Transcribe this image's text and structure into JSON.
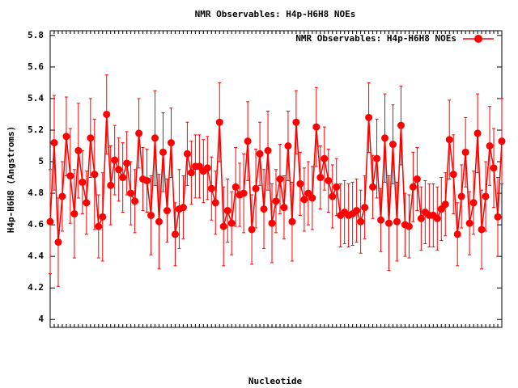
{
  "chart_data": {
    "type": "line-errorbar",
    "title": "NMR Observables: H4p-H6H8 NOEs",
    "x_label": "Nucleotide",
    "y_label": "H4p-H6H8 (Angstroms)",
    "legend_position": "top-right",
    "categories": [
      null,
      null,
      null,
      null,
      null,
      null,
      null,
      null,
      null,
      null,
      null,
      null,
      null,
      null,
      null,
      null,
      null,
      null,
      null,
      null,
      null,
      null,
      null,
      null,
      null,
      null,
      null,
      null,
      null,
      null,
      null,
      null,
      null,
      null,
      null,
      null,
      null,
      null,
      null,
      null,
      null,
      null,
      null,
      null,
      null,
      null,
      null,
      null,
      null,
      null,
      null,
      null,
      null,
      null,
      null,
      null,
      null,
      null,
      null,
      null,
      null,
      null,
      null,
      null,
      null,
      null,
      null,
      null,
      null,
      null,
      null,
      null,
      null,
      null,
      null,
      null,
      null,
      null,
      null,
      null,
      null,
      null,
      null,
      null,
      null,
      null,
      null,
      null,
      null,
      null,
      null,
      null,
      null,
      null,
      null,
      null,
      null,
      null,
      null,
      null,
      null,
      null,
      null,
      null,
      null,
      null,
      null,
      null,
      null,
      null,
      null,
      null,
      null
    ],
    "series": [
      {
        "name": "NMR Observables: H4p-H6H8 NOEs",
        "color": "#ff0000",
        "values": [
          4.62,
          5.12,
          4.49,
          4.78,
          5.16,
          4.91,
          4.67,
          5.07,
          4.87,
          4.74,
          5.15,
          4.92,
          4.59,
          4.65,
          5.3,
          4.85,
          5.01,
          4.95,
          4.9,
          4.99,
          4.8,
          4.75,
          5.18,
          4.89,
          4.88,
          4.66,
          5.15,
          4.62,
          5.06,
          4.69,
          5.12,
          4.54,
          4.7,
          4.71,
          5.05,
          4.93,
          4.97,
          4.97,
          4.94,
          4.96,
          4.83,
          4.74,
          5.25,
          4.59,
          4.69,
          4.61,
          4.84,
          4.79,
          4.8,
          5.13,
          4.57,
          4.83,
          5.05,
          4.7,
          5.07,
          4.61,
          4.75,
          4.89,
          4.71,
          5.1,
          4.62,
          5.25,
          4.86,
          4.76,
          4.8,
          4.77,
          5.22,
          4.9,
          5.02,
          4.88,
          4.78,
          4.84,
          4.66,
          4.68,
          4.66,
          4.67,
          4.69,
          4.62,
          4.71,
          5.28,
          4.84,
          5.02,
          4.63,
          5.15,
          4.61,
          5.11,
          4.62,
          5.23,
          4.6,
          4.59,
          4.84,
          4.89,
          4.64,
          4.68,
          4.66,
          4.66,
          4.64,
          4.7,
          4.73,
          5.14,
          4.92,
          4.54,
          4.78,
          5.06,
          4.61,
          4.74,
          5.18,
          4.57,
          4.78,
          5.1,
          4.96,
          4.65,
          5.13
        ],
        "errors": [
          0.33,
          0.3,
          0.28,
          0.22,
          0.25,
          0.3,
          0.28,
          0.3,
          0.2,
          0.2,
          0.25,
          0.35,
          0.2,
          0.28,
          0.25,
          0.25,
          0.22,
          0.2,
          0.22,
          0.2,
          0.2,
          0.2,
          0.22,
          0.2,
          0.2,
          0.25,
          0.3,
          0.3,
          0.25,
          0.2,
          0.22,
          0.2,
          0.25,
          0.2,
          0.2,
          0.2,
          0.2,
          0.2,
          0.2,
          0.2,
          0.2,
          0.2,
          0.25,
          0.25,
          0.2,
          0.2,
          0.25,
          0.2,
          0.25,
          0.25,
          0.22,
          0.25,
          0.2,
          0.25,
          0.25,
          0.25,
          0.2,
          0.22,
          0.2,
          0.22,
          0.25,
          0.2,
          0.2,
          0.2,
          0.2,
          0.2,
          0.25,
          0.2,
          0.2,
          0.2,
          0.2,
          0.18,
          0.2,
          0.2,
          0.2,
          0.2,
          0.2,
          0.2,
          0.2,
          0.22,
          0.2,
          0.25,
          0.2,
          0.28,
          0.3,
          0.25,
          0.25,
          0.25,
          0.2,
          0.2,
          0.22,
          0.2,
          0.2,
          0.2,
          0.2,
          0.2,
          0.2,
          0.2,
          0.2,
          0.25,
          0.25,
          0.2,
          0.2,
          0.22,
          0.2,
          0.2,
          0.25,
          0.25,
          0.22,
          0.25,
          0.25,
          0.25,
          0.27
        ]
      }
    ],
    "ylim": [
      3.95,
      5.83
    ],
    "yticks": [
      4,
      4.2,
      4.4,
      4.6,
      4.8,
      5,
      5.2,
      5.4,
      5.6,
      5.8
    ]
  }
}
